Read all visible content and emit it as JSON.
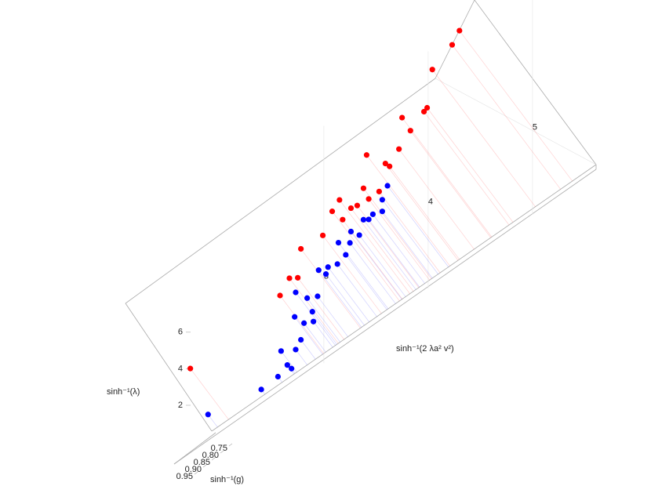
{
  "chart_data": {
    "type": "scatter3d",
    "x_label": "sinh⁻¹(2 λa² v²)",
    "y_label": "sinh⁻¹(λ)",
    "z_label": "sinh⁻¹(g)",
    "xlim": [
      1.7,
      5.6
    ],
    "xticks": [
      3,
      4,
      5
    ],
    "ylim": [
      -1,
      12
    ],
    "yticks": [
      2,
      4,
      6
    ],
    "zlim": [
      0.75,
      0.95
    ],
    "zticks": [
      0.75,
      {
        "value": 0.8,
        "label": "0.80"
      },
      0.85,
      {
        "value": 0.9,
        "label": "0.90"
      },
      0.95
    ],
    "series": [
      {
        "color": "#ff0000",
        "x": [
          1.72,
          2.58,
          2.67,
          2.78,
          2.99,
          3.08,
          3.18,
          3.26,
          3.32,
          3.43,
          3.41,
          3.53,
          3.59,
          3.63,
          3.72,
          3.75,
          3.83,
          3.99,
          4.04,
          4.23,
          4.3,
          3.96,
          3.15,
          3.38,
          2.75
        ],
        "values": [
          3.93,
          4.42,
          5.0,
          6.16,
          6.04,
          6.99,
          6.13,
          6.43,
          6.33,
          6.24,
          8.73,
          6.24,
          7.53,
          7.21,
          7.79,
          9.39,
          8.35,
          8.95,
          10.84,
          11.42,
          11.91,
          8.86,
          7.33,
          7.03,
          4.7
        ]
      },
      {
        "color": "#0000ff",
        "x": [
          1.89,
          2.4,
          2.56,
          2.69,
          2.59,
          2.73,
          2.81,
          2.89,
          2.72,
          2.9,
          2.73,
          2.94,
          2.95,
          3.04,
          3.13,
          3.14,
          3.21,
          3.26,
          3.34,
          3.38,
          3.47,
          3.56,
          3.61,
          3.56,
          3.02,
          2.84,
          3.25,
          3.43,
          2.65,
          2.78
        ],
        "values": [
          0.72,
          0.01,
          0.06,
          -0.03,
          1.34,
          0.85,
          1.97,
          2.27,
          2.68,
          1.69,
          3.98,
          2.91,
          4.3,
          4.1,
          3.9,
          5.03,
          4.08,
          5.15,
          4.63,
          5.31,
          5.24,
          5.67,
          6.23,
          5.03,
          3.8,
          3.22,
          4.57,
          5.12,
          0.33,
          1.18
        ]
      }
    ]
  }
}
